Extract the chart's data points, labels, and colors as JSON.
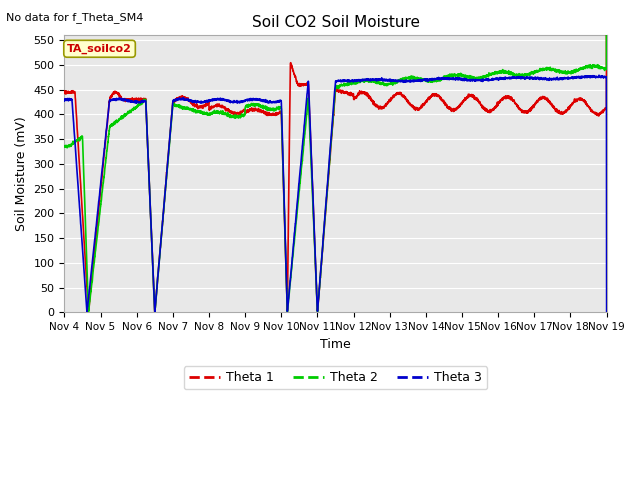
{
  "title": "Soil CO2 Soil Moisture",
  "no_data_text": "No data for f_Theta_SM4",
  "legend_label": "TA_soilco2",
  "ylabel": "Soil Moisture (mV)",
  "xlabel": "Time",
  "ylim": [
    0,
    560
  ],
  "yticks": [
    0,
    50,
    100,
    150,
    200,
    250,
    300,
    350,
    400,
    450,
    500,
    550
  ],
  "fig_bg": "#ffffff",
  "plot_bg": "#e8e8e8",
  "grid_color": "#ffffff",
  "colors": {
    "theta1": "#dd0000",
    "theta2": "#00cc00",
    "theta3": "#0000cc"
  },
  "legend_entries": [
    "Theta 1",
    "Theta 2",
    "Theta 3"
  ],
  "x_tick_labels": [
    "Nov 4",
    "Nov 5",
    "Nov 6",
    "Nov 7",
    "Nov 8",
    "Nov 9",
    "Nov 10",
    "Nov 11",
    "Nov 12",
    "Nov 13",
    "Nov 14",
    "Nov 15",
    "Nov 16",
    "Nov 17",
    "Nov 18",
    "Nov 19"
  ],
  "tag_facecolor": "#ffffcc",
  "tag_edgecolor": "#999900",
  "tag_textcolor": "#cc0000",
  "linewidth": 1.2,
  "figsize": [
    6.4,
    4.8
  ],
  "dpi": 100
}
